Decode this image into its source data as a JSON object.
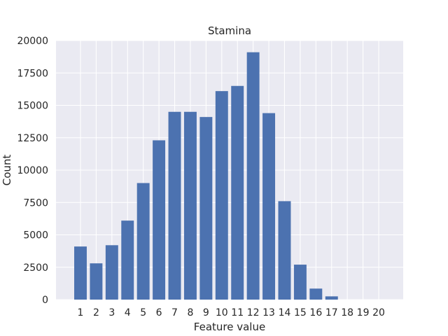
{
  "chart_data": {
    "type": "bar",
    "title": "Stamina",
    "xlabel": "Feature value",
    "ylabel": "Count",
    "categories": [
      "1",
      "2",
      "3",
      "4",
      "5",
      "6",
      "7",
      "8",
      "9",
      "10",
      "11",
      "12",
      "13",
      "14",
      "15",
      "16",
      "17",
      "18",
      "19",
      "20"
    ],
    "values": [
      4100,
      2800,
      4200,
      6100,
      9000,
      12300,
      14500,
      14500,
      14100,
      16100,
      16500,
      19100,
      14400,
      7600,
      2700,
      850,
      250,
      0,
      0,
      0
    ],
    "yticks": [
      "0",
      "2500",
      "5000",
      "7500",
      "10000",
      "12500",
      "15000",
      "17500",
      "20000"
    ],
    "ylim": [
      0,
      20000
    ],
    "grid": true,
    "colors": {
      "bar": "#4c72b0",
      "plot_bg": "#eaeaf2",
      "grid": "#ffffff"
    }
  }
}
